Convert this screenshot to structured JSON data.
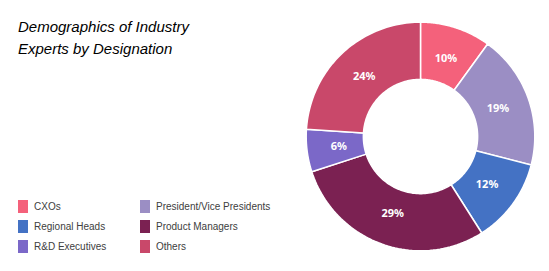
{
  "chart_data": {
    "type": "pie",
    "title": "Demographics of Industry\nExperts by Designation",
    "categories": [
      "CXOs",
      "President/Vice Presidents",
      "Regional Heads",
      "Product Managers",
      "R&D Executives",
      "Others"
    ],
    "values": [
      10,
      19,
      12,
      29,
      6,
      24
    ],
    "value_labels": [
      "10%",
      "19%",
      "12%",
      "29%",
      "6%",
      "24%"
    ],
    "colors": [
      "#F4617B",
      "#9B8EC4",
      "#4472C4",
      "#7B2152",
      "#7B68C8",
      "#C9486A"
    ],
    "data_labels": true,
    "legend": "bottom"
  }
}
